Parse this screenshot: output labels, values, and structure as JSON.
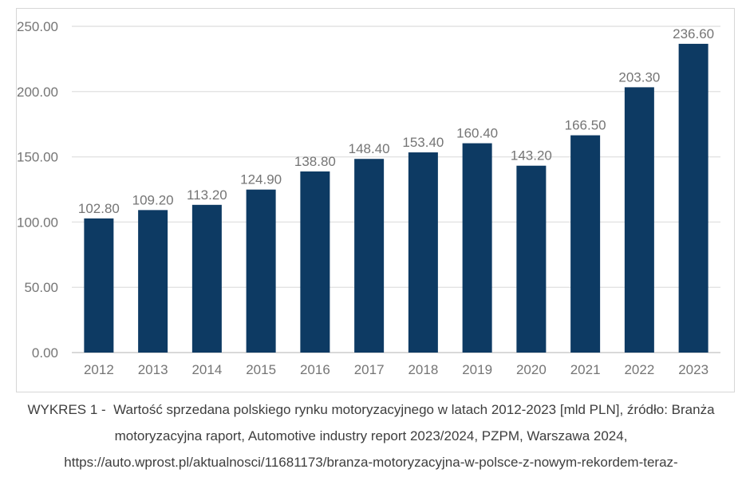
{
  "chart_data": {
    "type": "bar",
    "title": "",
    "xlabel": "",
    "ylabel": "",
    "categories": [
      "2012",
      "2013",
      "2014",
      "2015",
      "2016",
      "2017",
      "2018",
      "2019",
      "2020",
      "2021",
      "2022",
      "2023"
    ],
    "values": [
      102.8,
      109.2,
      113.2,
      124.9,
      138.8,
      148.4,
      153.4,
      160.4,
      143.2,
      166.5,
      203.3,
      236.6
    ],
    "value_labels": [
      "102.80",
      "109.20",
      "113.20",
      "124.90",
      "138.80",
      "148.40",
      "153.40",
      "160.40",
      "143.20",
      "166.50",
      "203.30",
      "236.60"
    ],
    "ylim": [
      0,
      250
    ],
    "ytick_step": 50,
    "ytick_labels": [
      "0.00",
      "50.00",
      "100.00",
      "150.00",
      "200.00",
      "250.00"
    ],
    "grid": true,
    "legend": "none",
    "colors": {
      "bar": "#0d3a63",
      "grid": "#e4e4e4",
      "axis_line": "#d9d9d9",
      "tick_label": "#757575",
      "value_label": "#757575"
    }
  },
  "caption": {
    "lines": [
      "WYKRES 1 -  Wartość sprzedana polskiego rynku motoryzacyjnego w latach 2012-2023 [mld PLN], źródło: Branża",
      "motoryzacyjna raport, Automotive industry report 2023/2024, PZPM, Warszawa 2024,",
      "https://auto.wprost.pl/aktualnosci/11681173/branza-motoryzacyjna-w-polsce-z-nowym-rekordem-teraz-"
    ]
  }
}
